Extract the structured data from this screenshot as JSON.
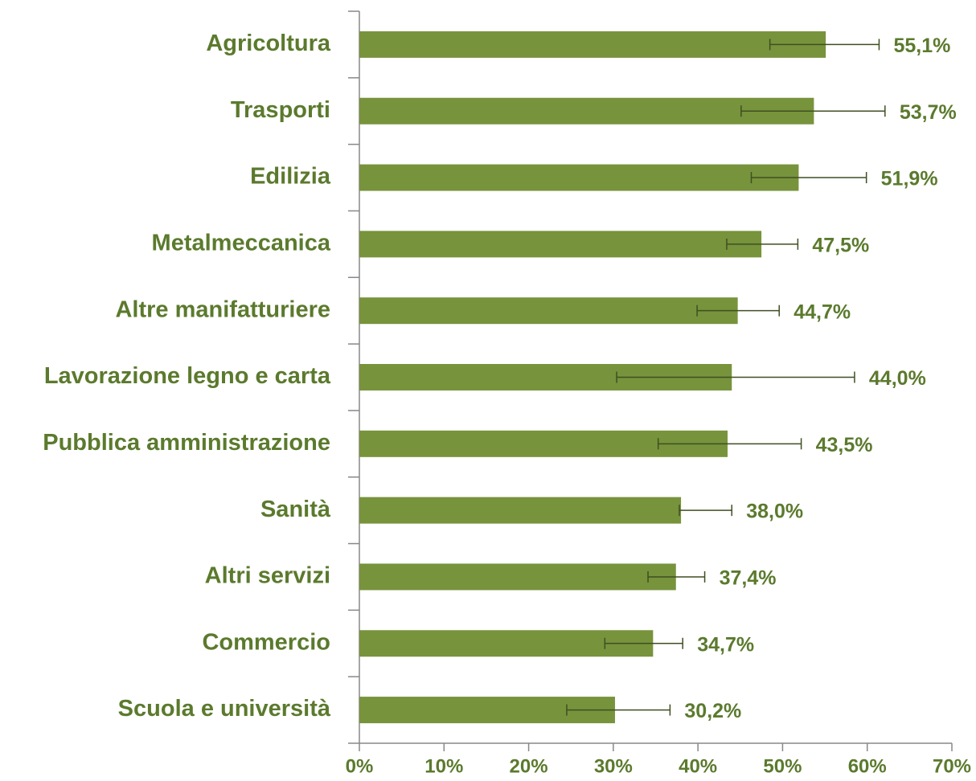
{
  "chart_data": {
    "type": "bar",
    "orientation": "horizontal",
    "categories": [
      "Agricoltura",
      "Trasporti",
      "Edilizia",
      "Metalmeccanica",
      "Altre manifatturiere",
      "Lavorazione legno e carta",
      "Pubblica amministrazione",
      "Sanità",
      "Altri servizi",
      "Commercio",
      "Scuola e università"
    ],
    "values": [
      55.1,
      53.7,
      51.9,
      47.5,
      44.7,
      44.0,
      43.5,
      38.0,
      37.4,
      34.7,
      30.2
    ],
    "value_labels": [
      "55,1%",
      "53,7%",
      "51,9%",
      "47,5%",
      "44,7%",
      "44,0%",
      "43,5%",
      "38,0%",
      "37,4%",
      "34,7%",
      "30,2%"
    ],
    "errors": [
      [
        6.6,
        6.3
      ],
      [
        8.6,
        8.4
      ],
      [
        5.6,
        8.0
      ],
      [
        4.1,
        4.3
      ],
      [
        4.8,
        4.9
      ],
      [
        13.6,
        14.5
      ],
      [
        8.2,
        8.7
      ],
      [
        0.2,
        6.0
      ],
      [
        3.3,
        3.4
      ],
      [
        5.7,
        3.5
      ],
      [
        5.7,
        6.5
      ]
    ],
    "color": "#77933c",
    "error_color": "#3f4f22",
    "xlim": [
      0,
      70
    ],
    "xticks": [
      {
        "value": 0,
        "label": "0%"
      },
      {
        "value": 10,
        "label": "10%"
      },
      {
        "value": 20,
        "label": "20%"
      },
      {
        "value": 30,
        "label": "30%"
      },
      {
        "value": 40,
        "label": "40%"
      },
      {
        "value": 50,
        "label": "50%"
      },
      {
        "value": 60,
        "label": "60%"
      },
      {
        "value": 70,
        "label": "70%"
      }
    ],
    "grid": false
  }
}
